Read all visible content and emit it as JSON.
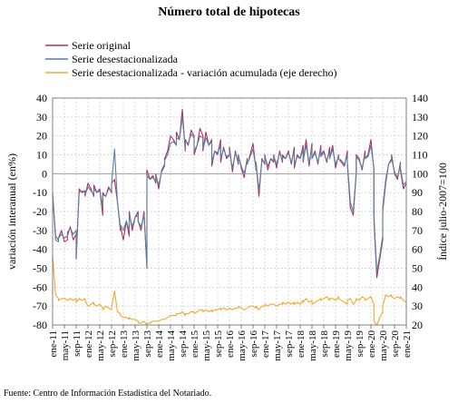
{
  "chart_data": {
    "type": "line",
    "title": "Número total de hipotecas",
    "source": "Fuente: Centro de Información Estadística del Notariado.",
    "ylabel_left": "variación interanual (en%)",
    "ylabel_right": "Índice julio-2007=100",
    "ylim_left": [
      -80,
      40
    ],
    "ylim_right": [
      20,
      140
    ],
    "yticks_left": [
      -80,
      -70,
      -60,
      -50,
      -40,
      -30,
      -20,
      -10,
      0,
      10,
      20,
      30,
      40
    ],
    "yticks_right": [
      20,
      30,
      40,
      50,
      60,
      70,
      80,
      90,
      100,
      110,
      120,
      130,
      140
    ],
    "x_tick_labels": [
      "ene-11",
      "may-11",
      "sep-11",
      "ene-12",
      "may-12",
      "sep-12",
      "ene-13",
      "may-13",
      "sep-13",
      "ene-14",
      "may-14",
      "sep-14",
      "ene-15",
      "may-15",
      "sep-15",
      "ene-16",
      "may-16",
      "sep-16",
      "ene-17",
      "may-17",
      "sep-17",
      "ene-18",
      "may-18",
      "sep-18",
      "ene-19",
      "may-19",
      "sep-19",
      "ene-20",
      "may-20",
      "sep-20",
      "ene-21"
    ],
    "legend_position": "top-left",
    "grid": true,
    "series": [
      {
        "name": "Serie original",
        "axis": "left",
        "color": "#b03060",
        "values": [
          -10,
          -33,
          -35,
          -34,
          -30,
          -36,
          -35,
          -33,
          -28,
          -35,
          -32,
          -45,
          -8,
          -10,
          -9,
          -12,
          -5,
          -8,
          -12,
          -6,
          -10,
          -8,
          -22,
          -10,
          -12,
          -7,
          -10,
          -5,
          -3,
          -15,
          -30,
          -28,
          -35,
          -25,
          -33,
          -20,
          -30,
          -23,
          -20,
          -25,
          -30,
          -20,
          -50,
          2,
          -3,
          -1,
          -5,
          0,
          -8,
          2,
          5,
          8,
          12,
          20,
          18,
          15,
          22,
          18,
          34,
          12,
          18,
          15,
          23,
          20,
          10,
          15,
          24,
          20,
          12,
          22,
          15,
          18,
          4,
          12,
          10,
          18,
          6,
          14,
          8,
          10,
          14,
          1,
          12,
          5,
          10,
          3,
          -2,
          8,
          5,
          10,
          16,
          2,
          6,
          -12,
          8,
          5,
          10,
          2,
          8,
          6,
          10,
          3,
          12,
          6,
          10,
          8,
          12,
          5,
          14,
          3,
          10,
          8,
          15,
          6,
          18,
          4,
          16,
          8,
          12,
          5,
          15,
          10,
          12,
          6,
          14,
          8,
          15,
          3,
          10,
          8,
          6,
          4,
          12,
          5,
          -18,
          -22,
          0,
          10,
          8,
          2,
          12,
          8,
          10,
          18,
          2,
          -25,
          -55,
          -45,
          -35,
          -20,
          -5,
          5,
          8,
          10,
          0,
          -3,
          6,
          2,
          -8,
          -5
        ],
        "x_start": 0
      },
      {
        "name": "Serie desestacionalizada",
        "axis": "left",
        "color": "#5a7fa0",
        "values": [
          -10,
          -35,
          -36,
          -34,
          -32,
          -34,
          -33,
          -31,
          -29,
          -32,
          -30,
          -44,
          -10,
          -9,
          -10,
          -11,
          -7,
          -9,
          -11,
          -8,
          -10,
          -9,
          -18,
          -11,
          -12,
          -8,
          -9,
          -6,
          13,
          -15,
          -28,
          -27,
          -30,
          -25,
          -30,
          -22,
          -28,
          -23,
          -22,
          -25,
          -28,
          -22,
          -48,
          -1,
          -3,
          -2,
          -4,
          -1,
          -6,
          1,
          4,
          7,
          10,
          16,
          17,
          15,
          19,
          18,
          30,
          14,
          17,
          16,
          21,
          19,
          12,
          15,
          20,
          19,
          13,
          19,
          15,
          17,
          6,
          12,
          11,
          15,
          8,
          13,
          9,
          10,
          12,
          3,
          11,
          6,
          9,
          4,
          0,
          7,
          5,
          9,
          13,
          3,
          6,
          -9,
          7,
          6,
          9,
          4,
          8,
          7,
          9,
          5,
          11,
          7,
          9,
          8,
          11,
          6,
          12,
          5,
          9,
          8,
          13,
          7,
          15,
          6,
          14,
          8,
          11,
          6,
          13,
          9,
          11,
          7,
          12,
          8,
          13,
          5,
          9,
          8,
          7,
          5,
          10,
          6,
          -15,
          -20,
          1,
          9,
          7,
          3,
          10,
          8,
          9,
          15,
          3,
          -22,
          -52,
          -43,
          -33,
          -18,
          -3,
          5,
          7,
          8,
          1,
          -2,
          5,
          3,
          -6,
          -4
        ],
        "x_start": 0
      },
      {
        "name": "Serie desestacionalizada - variación acumulada (eje derecho)",
        "axis": "right",
        "color": "#f0a830",
        "values": [
          57,
          36,
          34,
          33,
          34,
          34,
          33,
          33,
          34,
          33,
          34,
          32,
          34,
          33,
          34,
          33,
          30,
          31,
          32,
          31,
          30,
          31,
          29,
          28,
          30,
          29,
          28,
          29,
          38,
          27,
          26,
          25,
          24,
          24,
          23,
          24,
          23,
          23,
          22,
          21,
          21,
          22,
          20,
          21,
          21,
          22,
          22,
          22,
          22,
          23,
          23,
          23,
          24,
          25,
          25,
          25,
          26,
          26,
          27,
          25,
          26,
          26,
          27,
          27,
          26,
          27,
          28,
          28,
          27,
          28,
          27,
          28,
          27,
          28,
          28,
          29,
          28,
          29,
          28,
          29,
          29,
          28,
          29,
          29,
          30,
          29,
          28,
          29,
          29,
          30,
          30,
          29,
          30,
          28,
          30,
          30,
          31,
          30,
          31,
          31,
          31,
          30,
          31,
          31,
          32,
          31,
          32,
          31,
          32,
          31,
          32,
          31,
          33,
          32,
          34,
          32,
          33,
          31,
          32,
          33,
          34,
          33,
          34,
          35,
          33,
          34,
          34,
          33,
          35,
          34,
          33,
          32,
          31,
          33,
          34,
          31,
          33,
          34,
          33,
          35,
          34,
          33,
          34,
          35,
          31,
          22,
          20,
          24,
          27,
          30,
          36,
          35,
          36,
          35,
          34,
          35,
          34,
          35,
          33,
          32
        ],
        "x_start": 0
      }
    ]
  }
}
